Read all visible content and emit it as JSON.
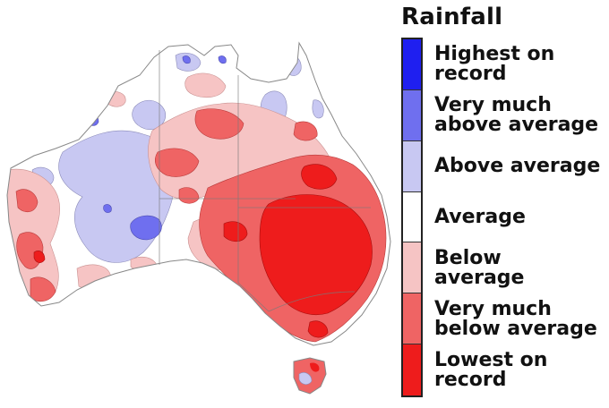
{
  "legend": {
    "title": "Rainfall",
    "items": [
      {
        "label": "Highest on\nrecord",
        "color": "#1f1ff0"
      },
      {
        "label": "Very much\nabove average",
        "color": "#6f6fef"
      },
      {
        "label": "Above average",
        "color": "#c8c8f2"
      },
      {
        "label": "Average",
        "color": "#ffffff"
      },
      {
        "label": "Below\naverage",
        "color": "#f6c4c4"
      },
      {
        "label": "Very much\nbelow average",
        "color": "#ef6464"
      },
      {
        "label": "Lowest on\nrecord",
        "color": "#ee1c1c"
      }
    ]
  }
}
